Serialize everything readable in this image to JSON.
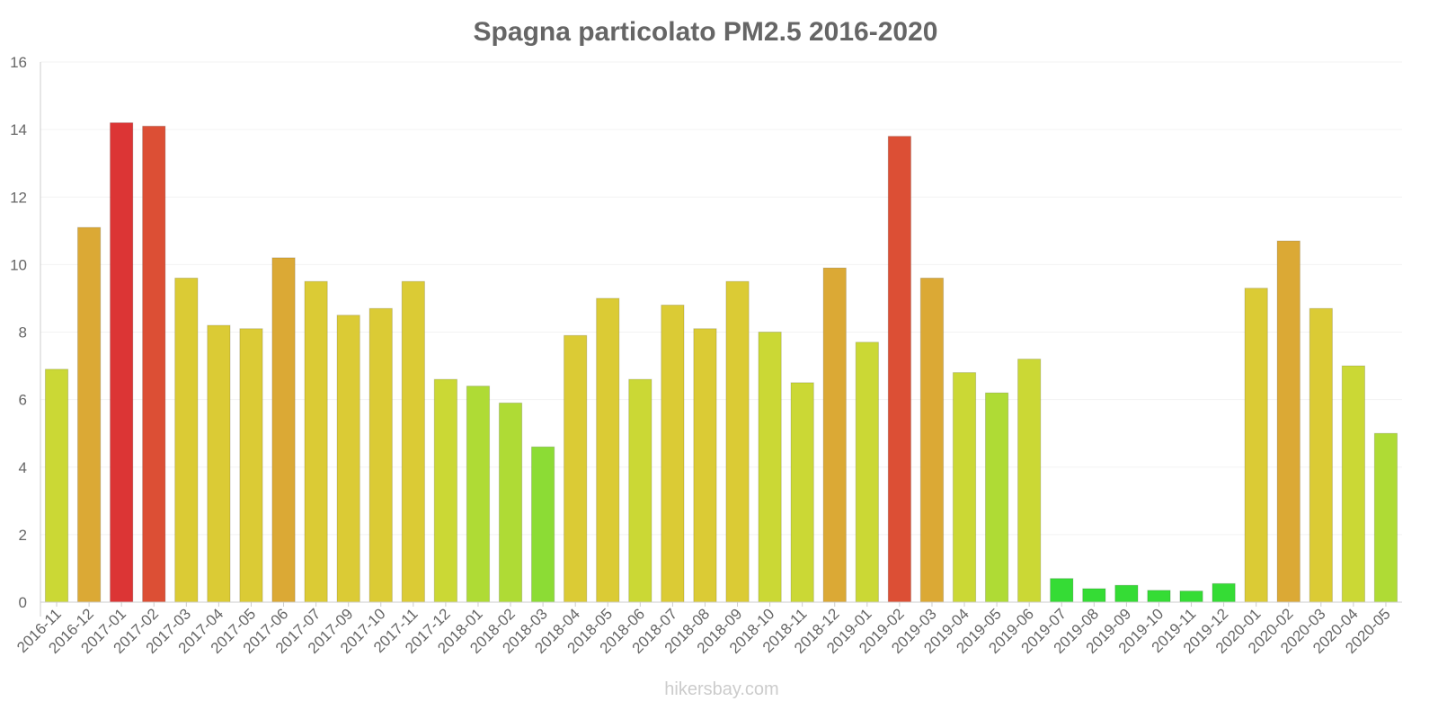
{
  "chart_data": {
    "type": "bar",
    "title": "Spagna particolato PM2.5 2016-2020",
    "xlabel": "",
    "ylabel": "",
    "ylim": [
      0,
      16
    ],
    "yticks": [
      "0",
      "2",
      "4",
      "6",
      "8",
      "10",
      "12",
      "14",
      "16"
    ],
    "grid": true,
    "categories": [
      "2016-11",
      "2016-12",
      "2017-01",
      "2017-02",
      "2017-03",
      "2017-04",
      "2017-05",
      "2017-06",
      "2017-07",
      "2017-09",
      "2017-10",
      "2017-11",
      "2017-12",
      "2018-01",
      "2018-02",
      "2018-03",
      "2018-04",
      "2018-05",
      "2018-06",
      "2018-07",
      "2018-08",
      "2018-09",
      "2018-10",
      "2018-11",
      "2018-12",
      "2019-01",
      "2019-02",
      "2019-03",
      "2019-04",
      "2019-05",
      "2019-06",
      "2019-07",
      "2019-08",
      "2019-09",
      "2019-10",
      "2019-11",
      "2019-12",
      "2020-01",
      "2020-02",
      "2020-03",
      "2020-04",
      "2020-05"
    ],
    "values": [
      6.9,
      11.1,
      14.2,
      14.1,
      9.6,
      8.2,
      8.1,
      10.2,
      9.5,
      8.5,
      8.7,
      9.5,
      6.6,
      6.4,
      5.9,
      4.6,
      7.9,
      9.0,
      6.6,
      8.8,
      8.1,
      9.5,
      8.0,
      6.5,
      9.9,
      7.7,
      13.8,
      9.6,
      6.8,
      6.2,
      7.2,
      0.7,
      0.4,
      0.5,
      0.35,
      0.33,
      0.55,
      9.3,
      10.7,
      8.7,
      7.0,
      5.0
    ],
    "colors": [
      "#cbd835",
      "#dba935",
      "#dc3535",
      "#dc4f35",
      "#dbcb35",
      "#dbcb35",
      "#dbcb35",
      "#dba935",
      "#dbcb35",
      "#dbcb35",
      "#dbcb35",
      "#dbcb35",
      "#cbd835",
      "#afdb35",
      "#afdb35",
      "#8cdc35",
      "#dbcb35",
      "#dbcb35",
      "#cbd835",
      "#dbcb35",
      "#dbcb35",
      "#dbcb35",
      "#cbd835",
      "#cbd835",
      "#dba935",
      "#cbd835",
      "#dc4f35",
      "#dba935",
      "#cbd835",
      "#afdb35",
      "#cbd835",
      "#35dc35",
      "#35dc35",
      "#35dc35",
      "#35dc35",
      "#35dc35",
      "#35dc35",
      "#dbcb35",
      "#dba935",
      "#dbcb35",
      "#cbd835",
      "#afdb35"
    ]
  },
  "credit": "hikersbay.com"
}
